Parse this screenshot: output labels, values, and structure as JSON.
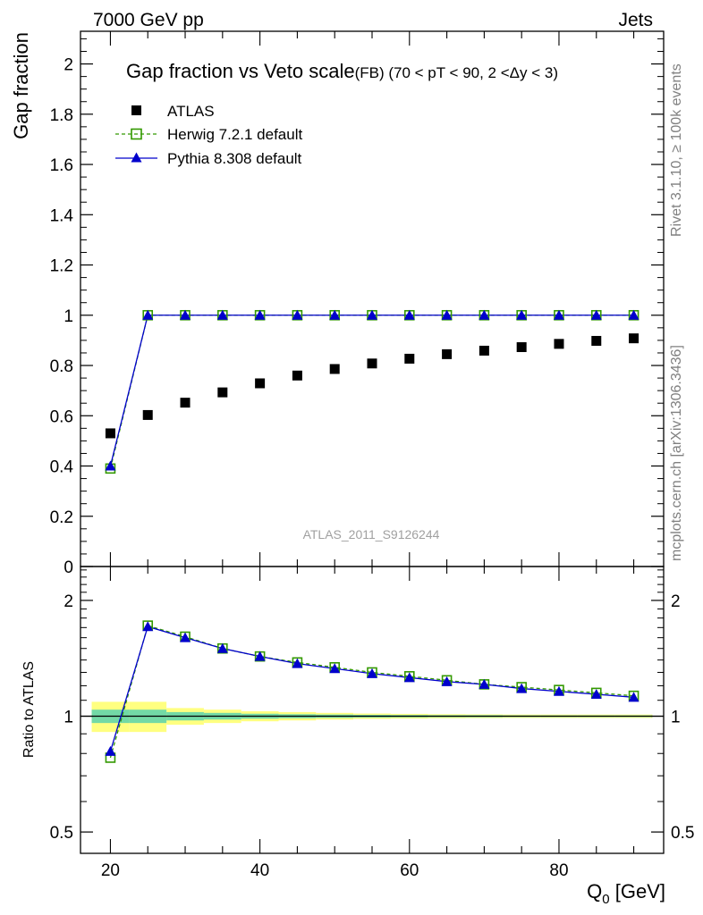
{
  "header": {
    "left": "7000 GeV pp",
    "right": "Jets"
  },
  "side_labels": {
    "top": "Rivet 3.1.10, ≥ 100k events",
    "bottom": "mcplots.cern.ch [arXiv:1306.3436]"
  },
  "watermark": "ATLAS_2011_S9126244",
  "colors": {
    "atlas": "#000000",
    "herwig": "#339900",
    "pythia": "#0000cc",
    "band_inner": "#73d9a6",
    "band_outer": "#ffff80"
  },
  "chart_data": [
    {
      "type": "scatter",
      "panel": "main",
      "title": "Gap fraction vs Veto scale",
      "subtitle": "(FB) (70 < pT <  90, 2 <Δy < 3)",
      "ylabel": "Gap fraction",
      "xlim": [
        16,
        94
      ],
      "ylim": [
        0,
        2.13
      ],
      "yticks": [
        0,
        0.2,
        0.4,
        0.6,
        0.8,
        1,
        1.2,
        1.4,
        1.6,
        1.8,
        2
      ],
      "ytick_labels": [
        "0",
        "0.2",
        "0.4",
        "0.6",
        "0.8",
        "1",
        "1.2",
        "1.4",
        "1.6",
        "1.8",
        "2"
      ],
      "legend_position": "top-left",
      "x": [
        20,
        25,
        30,
        35,
        40,
        45,
        50,
        55,
        60,
        65,
        70,
        75,
        80,
        85,
        90
      ],
      "series": [
        {
          "name": "ATLAS",
          "style": "square",
          "values": [
            0.53,
            0.603,
            0.652,
            0.693,
            0.729,
            0.76,
            0.786,
            0.808,
            0.827,
            0.845,
            0.859,
            0.873,
            0.886,
            0.898,
            0.908
          ]
        },
        {
          "name": "Herwig 7.2.1 default",
          "style": "dashed-open-square",
          "values": [
            0.39,
            1,
            1,
            1,
            1,
            1,
            1,
            1,
            1,
            1,
            1,
            1,
            1,
            1,
            1
          ]
        },
        {
          "name": "Pythia 8.308 default",
          "style": "solid-triangle",
          "values": [
            0.4,
            1,
            1,
            1,
            1,
            1,
            1,
            1,
            1,
            1,
            1,
            1,
            1,
            1,
            1
          ]
        }
      ]
    },
    {
      "type": "line",
      "panel": "ratio",
      "ylabel": "Ratio to ATLAS",
      "xlabel": "Q",
      "xlabel_sub": "0",
      "xlabel_unit": " [GeV]",
      "xlim": [
        16,
        94
      ],
      "ylim": [
        0.44,
        2.45
      ],
      "log_y": true,
      "xticks": [
        20,
        40,
        60,
        80
      ],
      "xtick_labels": [
        "20",
        "40",
        "60",
        "80"
      ],
      "yticks": [
        0.5,
        1,
        2
      ],
      "ytick_labels": [
        "0.5",
        "1",
        "2"
      ],
      "x": [
        20,
        25,
        30,
        35,
        40,
        45,
        50,
        55,
        60,
        65,
        70,
        75,
        80,
        85,
        90
      ],
      "band_edges": [
        17.5,
        22.5,
        27.5,
        32.5,
        37.5,
        42.5,
        47.5,
        52.5,
        57.5,
        62.5,
        67.5,
        72.5,
        77.5,
        82.5,
        87.5,
        92.5
      ],
      "band_inner": [
        0.04,
        0.04,
        0.025,
        0.02,
        0.015,
        0.012,
        0.01,
        0.008,
        0.007,
        0.006,
        0.006,
        0.005,
        0.005,
        0.005,
        0.005
      ],
      "band_outer": [
        0.09,
        0.09,
        0.05,
        0.04,
        0.03,
        0.025,
        0.02,
        0.016,
        0.014,
        0.012,
        0.011,
        0.01,
        0.01,
        0.01,
        0.01
      ],
      "series": [
        {
          "name": "Herwig 7.2.1 default",
          "style": "dashed-open-square",
          "values": [
            0.78,
            1.72,
            1.61,
            1.5,
            1.43,
            1.38,
            1.34,
            1.3,
            1.27,
            1.24,
            1.21,
            1.19,
            1.17,
            1.15,
            1.13
          ]
        },
        {
          "name": "Pythia 8.308 default",
          "style": "solid-triangle",
          "values": [
            0.81,
            1.71,
            1.6,
            1.5,
            1.43,
            1.37,
            1.33,
            1.29,
            1.26,
            1.23,
            1.21,
            1.18,
            1.16,
            1.14,
            1.12
          ]
        }
      ]
    }
  ]
}
